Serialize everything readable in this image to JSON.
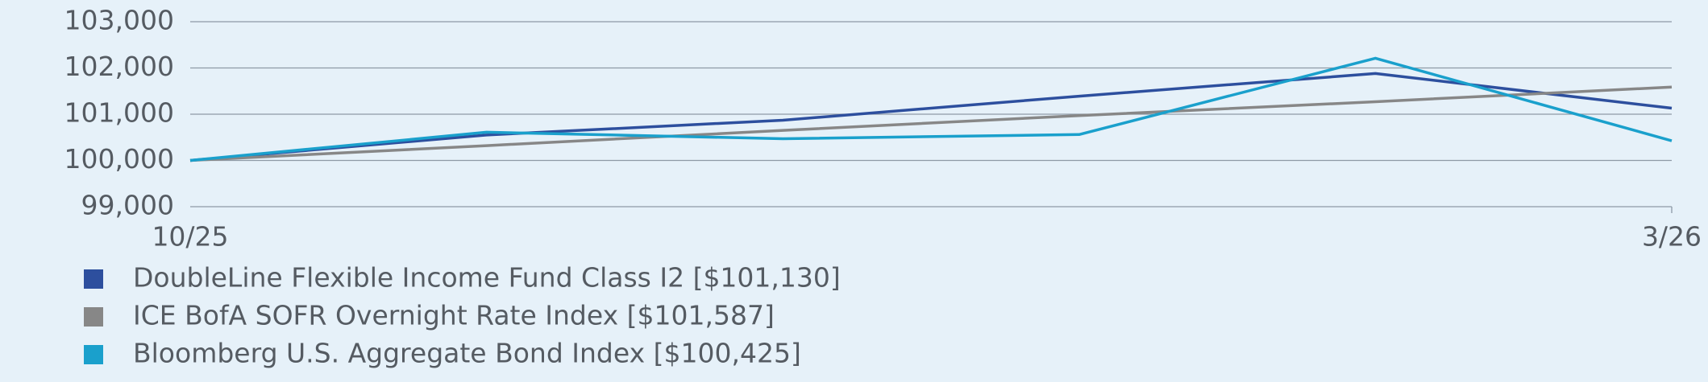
{
  "chart_data": {
    "type": "line",
    "categories": [
      "10/25",
      null,
      null,
      null,
      null,
      "3/26"
    ],
    "series": [
      {
        "name": "DoubleLine Flexible Income Fund Class I2 [$101,130]",
        "color": "#2d4f9e",
        "values": [
          100000,
          100550,
          100870,
          101390,
          101880,
          101130
        ]
      },
      {
        "name": "ICE BofA SOFR Overnight Rate Index [$101,587]",
        "color": "#878787",
        "values": [
          100000,
          100320,
          100650,
          100970,
          101270,
          101587
        ]
      },
      {
        "name": "Bloomberg U.S. Aggregate Bond Index [$100,425]",
        "color": "#1aa0cc",
        "values": [
          100000,
          100610,
          100470,
          100560,
          102210,
          100425
        ]
      }
    ],
    "ylim": [
      99000,
      103000
    ],
    "yticks": [
      {
        "value": 99000,
        "label": "99,000"
      },
      {
        "value": 100000,
        "label": "100,000"
      },
      {
        "value": 101000,
        "label": "101,000"
      },
      {
        "value": 102000,
        "label": "102,000"
      },
      {
        "value": 103000,
        "label": "103,000"
      }
    ],
    "grid": true
  }
}
